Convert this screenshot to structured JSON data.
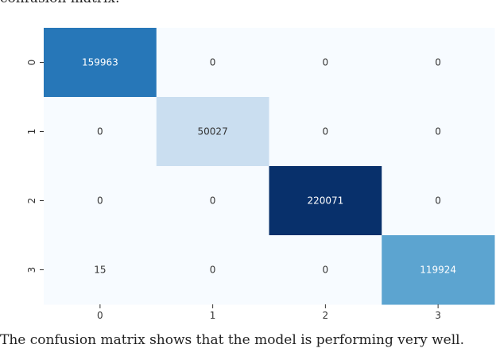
{
  "caption_top": "confusion matrix:",
  "caption_bottom": "The confusion matrix shows that the model is performing very well.",
  "chart_data": {
    "type": "heatmap",
    "title": "",
    "xlabel": "",
    "ylabel": "",
    "x_categories": [
      "0",
      "1",
      "2",
      "3"
    ],
    "y_categories": [
      "0",
      "1",
      "2",
      "3"
    ],
    "values": [
      [
        159963,
        0,
        0,
        0
      ],
      [
        0,
        50027,
        0,
        0
      ],
      [
        0,
        0,
        220071,
        0
      ],
      [
        15,
        0,
        0,
        119924
      ]
    ],
    "colormap": "Blues",
    "colorbar": false,
    "annotations": true,
    "color_low": "#f7fbff",
    "color_high": "#08306b"
  }
}
